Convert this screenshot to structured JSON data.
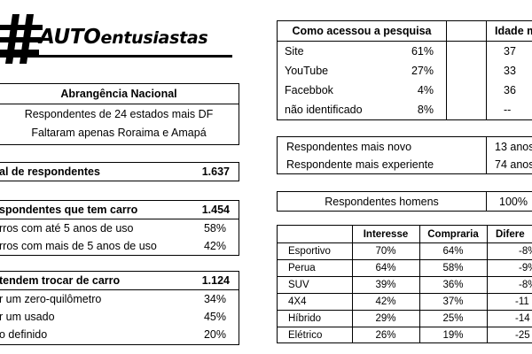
{
  "logo": {
    "text_auto": "AUTO",
    "text_rest": "entusiastas"
  },
  "abrangencia": {
    "title": "Abrangência Nacional",
    "line1": "Respondentes de 24 estados mais DF",
    "line2": "Faltaram apenas Roraima e Amapá"
  },
  "total": {
    "label": "al de respondentes",
    "value": "1.637"
  },
  "tem_carro": {
    "title": "spondentes que tem carro",
    "value": "1.454",
    "rows": [
      {
        "label": "rros com até 5 anos de uso",
        "value": "58%"
      },
      {
        "label": "rros com mais de 5 anos de uso",
        "value": "42%"
      }
    ]
  },
  "trocar": {
    "title": "tendem trocar de carro",
    "value": "1.124",
    "rows": [
      {
        "label": "r um zero-quilômetro",
        "value": "34%"
      },
      {
        "label": "r um usado",
        "value": "45%"
      },
      {
        "label": "o definido",
        "value": "20%"
      }
    ]
  },
  "acesso": {
    "header_label": "Como acessou a pesquisa",
    "header_idade": "Idade mé",
    "rows": [
      {
        "label": "Site",
        "pct": "61%",
        "idade": "37"
      },
      {
        "label": "YouTube",
        "pct": "27%",
        "idade": "33"
      },
      {
        "label": "Facebbok",
        "pct": "4%",
        "idade": "36"
      },
      {
        "label": "não identificado",
        "pct": "8%",
        "idade": "--"
      }
    ]
  },
  "idades": {
    "rows": [
      {
        "label": "Respondentes mais novo",
        "value": "13 anos"
      },
      {
        "label": "Respondente mais experiente",
        "value": "74 anos"
      }
    ]
  },
  "homens": {
    "label": "Respondentes homens",
    "value": "100%"
  },
  "segmentos": {
    "headers": {
      "interesse": "Interesse",
      "compraria": "Compraria",
      "diferenca": "Difere"
    },
    "rows": [
      {
        "label": "Esportivo",
        "interesse": "70%",
        "compraria": "64%",
        "diferenca": "-8%"
      },
      {
        "label": "Perua",
        "interesse": "64%",
        "compraria": "58%",
        "diferenca": "-9%"
      },
      {
        "label": "SUV",
        "interesse": "39%",
        "compraria": "36%",
        "diferenca": "-8%"
      },
      {
        "label": "4X4",
        "interesse": "42%",
        "compraria": "37%",
        "diferenca": "-11"
      },
      {
        "label": "Híbrido",
        "interesse": "29%",
        "compraria": "25%",
        "diferenca": "-14"
      },
      {
        "label": "Elétrico",
        "interesse": "26%",
        "compraria": "19%",
        "diferenca": "-25"
      }
    ]
  }
}
